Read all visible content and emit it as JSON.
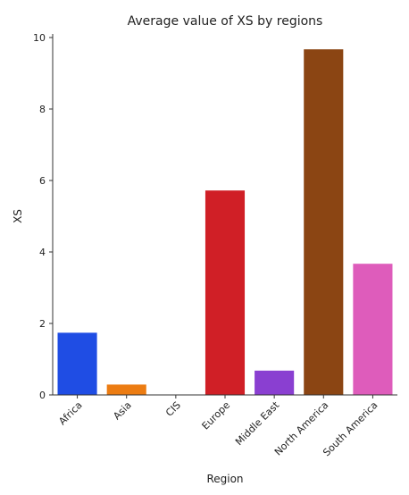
{
  "chart_data": {
    "type": "bar",
    "title": "Average value of XS by regions",
    "xlabel": "Region",
    "ylabel": "XS",
    "categories": [
      "Africa",
      "Asia",
      "CIS",
      "Europe",
      "Middle East",
      "North America",
      "South America"
    ],
    "values": [
      1.74,
      0.29,
      0.0,
      5.72,
      0.68,
      9.67,
      3.67
    ],
    "colors": [
      "#1f4de4",
      "#ec7c12",
      "#17a12b",
      "#d01f26",
      "#8a3fd1",
      "#8b4513",
      "#de5cbb"
    ],
    "ylim": [
      0,
      10.1
    ],
    "yticks": [
      0,
      2,
      4,
      6,
      8,
      10
    ],
    "grid": false,
    "legend": "none"
  }
}
